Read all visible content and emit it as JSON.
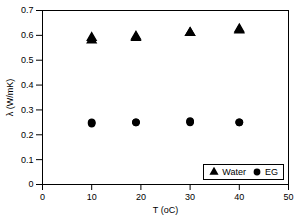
{
  "chart_data": {
    "type": "scatter",
    "xlabel": "T (oC)",
    "ylabel": "λ (W/mK)",
    "x": [
      10,
      10,
      19,
      19,
      30,
      30,
      40,
      40
    ],
    "series": [
      {
        "name": "Water",
        "color": "#000000",
        "marker": "triangle",
        "values": [
          0.58,
          0.59,
          0.59,
          0.595,
          0.61,
          0.61,
          0.62,
          0.625
        ]
      },
      {
        "name": "EG",
        "color": "#000000",
        "marker": "circle",
        "values": [
          0.245,
          0.25,
          0.25,
          0.25,
          0.25,
          0.255,
          0.25,
          0.25
        ]
      }
    ],
    "xlim": [
      0,
      50
    ],
    "xticks": [
      0,
      10,
      20,
      30,
      40,
      50
    ],
    "ylim": [
      0,
      0.7
    ],
    "yticks": [
      0,
      0.1,
      0.2,
      0.3,
      0.4,
      0.5,
      0.6,
      0.7
    ],
    "grid": false,
    "legend": "lower right"
  }
}
